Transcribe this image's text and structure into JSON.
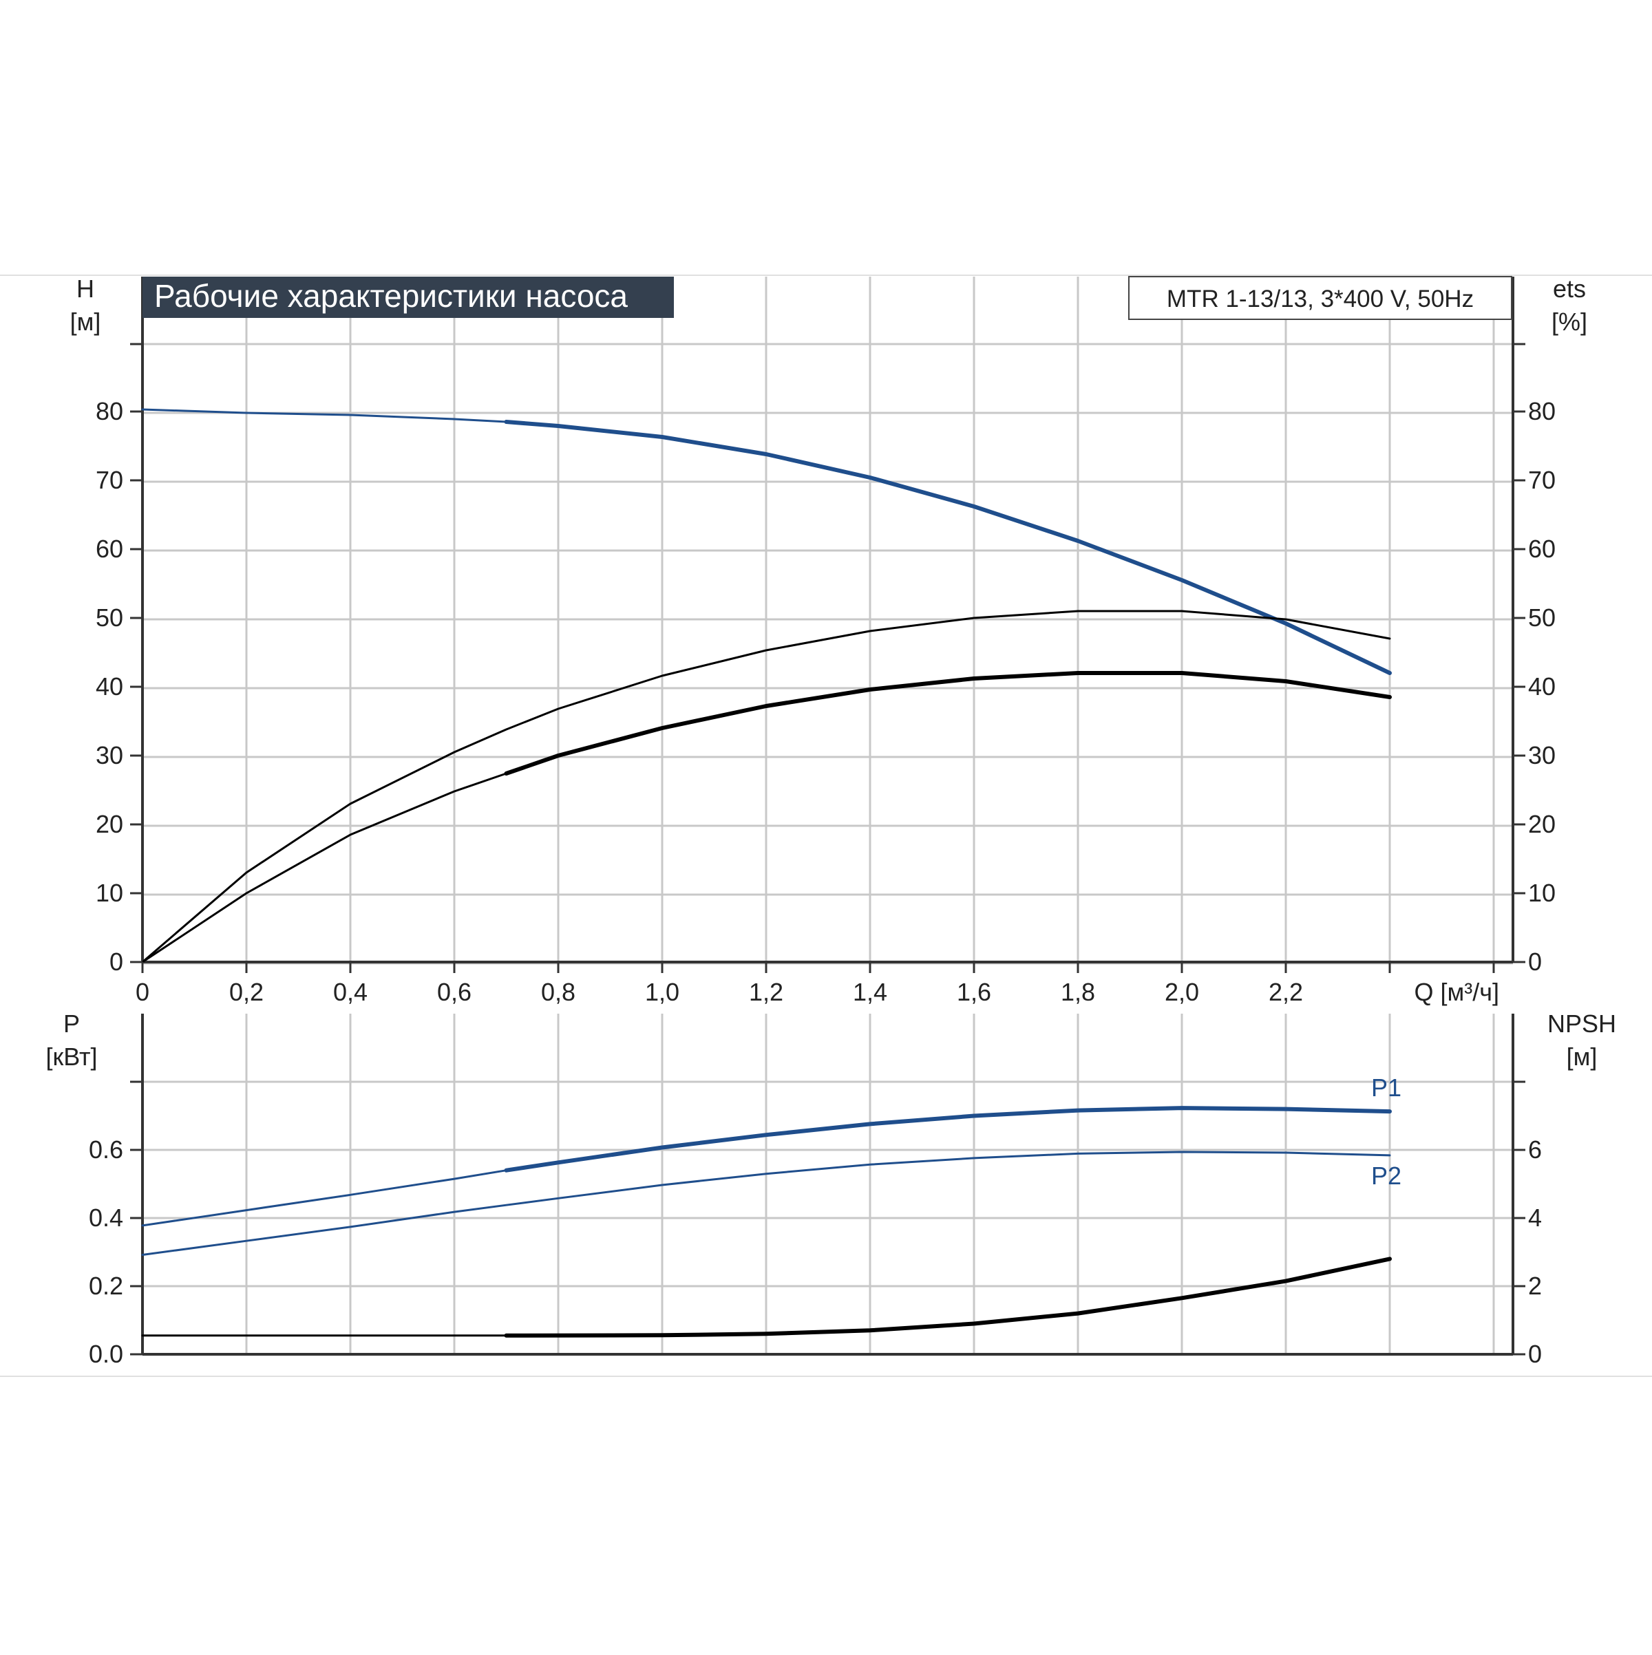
{
  "colors": {
    "background": "#ffffff",
    "grid": "#c8c8c8",
    "axis": "#333333",
    "title_bg": "#34404f",
    "title_fg": "#ffffff",
    "blue": "#1f4e8c",
    "black": "#000000",
    "text": "#222222"
  },
  "title": "Рабочие характеристики насоса",
  "model_label": "MTR 1-13/13, 3*400 V, 50Hz",
  "chart_data": [
    {
      "type": "line",
      "name": "head-efficiency",
      "xlabel": "Q [м³/ч]",
      "xlim": [
        0,
        2.6
      ],
      "x_ticks": [
        "0",
        "0,2",
        "0,4",
        "0,6",
        "0,8",
        "1,0",
        "1,2",
        "1,4",
        "1,6",
        "1,8",
        "2,0",
        "2,2"
      ],
      "y_left": {
        "label_line1": "H",
        "label_line2": "[м]",
        "lim": [
          0,
          90
        ],
        "ticks": [
          "0",
          "10",
          "20",
          "30",
          "40",
          "50",
          "60",
          "70",
          "80"
        ]
      },
      "y_right": {
        "label_line1": "ets",
        "label_line2": "[%]",
        "lim": [
          0,
          90
        ],
        "ticks": [
          "0",
          "10",
          "20",
          "30",
          "40",
          "50",
          "60",
          "70",
          "80"
        ]
      },
      "grid": true,
      "series": [
        {
          "key": "H",
          "color": "blue",
          "axis": "left",
          "bold_from": 0.7,
          "x": [
            0,
            0.2,
            0.4,
            0.6,
            0.7,
            0.8,
            1.0,
            1.2,
            1.4,
            1.6,
            1.8,
            2.0,
            2.2,
            2.4
          ],
          "y": [
            80.3,
            79.8,
            79.5,
            78.9,
            78.5,
            77.9,
            76.3,
            73.8,
            70.4,
            66.2,
            61.2,
            55.5,
            49.2,
            42.0
          ]
        },
        {
          "key": "eta",
          "color": "black",
          "axis": "right",
          "bold_from": 9,
          "x": [
            0,
            0.2,
            0.4,
            0.6,
            0.7,
            0.8,
            1.0,
            1.2,
            1.4,
            1.6,
            1.8,
            2.0,
            2.2,
            2.4
          ],
          "y": [
            0,
            13.0,
            23.0,
            30.5,
            33.8,
            36.8,
            41.6,
            45.3,
            48.1,
            50.0,
            51.0,
            51.0,
            49.8,
            47.0
          ]
        },
        {
          "key": "eta_p",
          "color": "black",
          "axis": "right",
          "bold_from": 0.7,
          "x": [
            0,
            0.2,
            0.4,
            0.6,
            0.7,
            0.8,
            1.0,
            1.2,
            1.4,
            1.6,
            1.8,
            2.0,
            2.2,
            2.4
          ],
          "y": [
            0,
            10.0,
            18.5,
            24.8,
            27.4,
            30.0,
            34.0,
            37.2,
            39.6,
            41.2,
            42.0,
            42.0,
            40.8,
            38.5
          ]
        }
      ]
    },
    {
      "type": "line",
      "name": "power-npsh",
      "xlim": [
        0,
        2.6
      ],
      "y_left": {
        "label_line1": "P",
        "label_line2": "[кВт]",
        "lim": [
          0,
          0.8
        ],
        "ticks": [
          "0.0",
          "0.2",
          "0.4",
          "0.6"
        ]
      },
      "y_right": {
        "label_line1": "NPSH",
        "label_line2": "[м]",
        "lim": [
          0,
          8
        ],
        "ticks": [
          "0",
          "2",
          "4",
          "6"
        ]
      },
      "grid": true,
      "series": [
        {
          "key": "P1",
          "name": "P1",
          "color": "blue",
          "axis": "left",
          "bold_from": 0.7,
          "x": [
            0,
            0.2,
            0.4,
            0.6,
            0.7,
            0.8,
            1.0,
            1.2,
            1.4,
            1.6,
            1.8,
            2.0,
            2.2,
            2.4
          ],
          "y": [
            0.378,
            0.423,
            0.468,
            0.515,
            0.54,
            0.563,
            0.607,
            0.644,
            0.676,
            0.7,
            0.716,
            0.723,
            0.72,
            0.713
          ]
        },
        {
          "key": "P2",
          "name": "P2",
          "color": "blue",
          "axis": "left",
          "bold_from": 9,
          "x": [
            0,
            0.2,
            0.4,
            0.6,
            0.7,
            0.8,
            1.0,
            1.2,
            1.4,
            1.6,
            1.8,
            2.0,
            2.2,
            2.4
          ],
          "y": [
            0.292,
            0.333,
            0.374,
            0.418,
            0.438,
            0.458,
            0.497,
            0.53,
            0.557,
            0.576,
            0.589,
            0.594,
            0.592,
            0.584
          ]
        },
        {
          "key": "NPSH",
          "color": "black",
          "axis": "right",
          "bold_from": 0.7,
          "x": [
            0,
            0.6,
            0.7,
            1.0,
            1.2,
            1.4,
            1.6,
            1.8,
            2.0,
            2.2,
            2.4
          ],
          "y": [
            0.55,
            0.55,
            0.55,
            0.56,
            0.6,
            0.7,
            0.9,
            1.2,
            1.65,
            2.15,
            2.8
          ]
        }
      ]
    }
  ]
}
